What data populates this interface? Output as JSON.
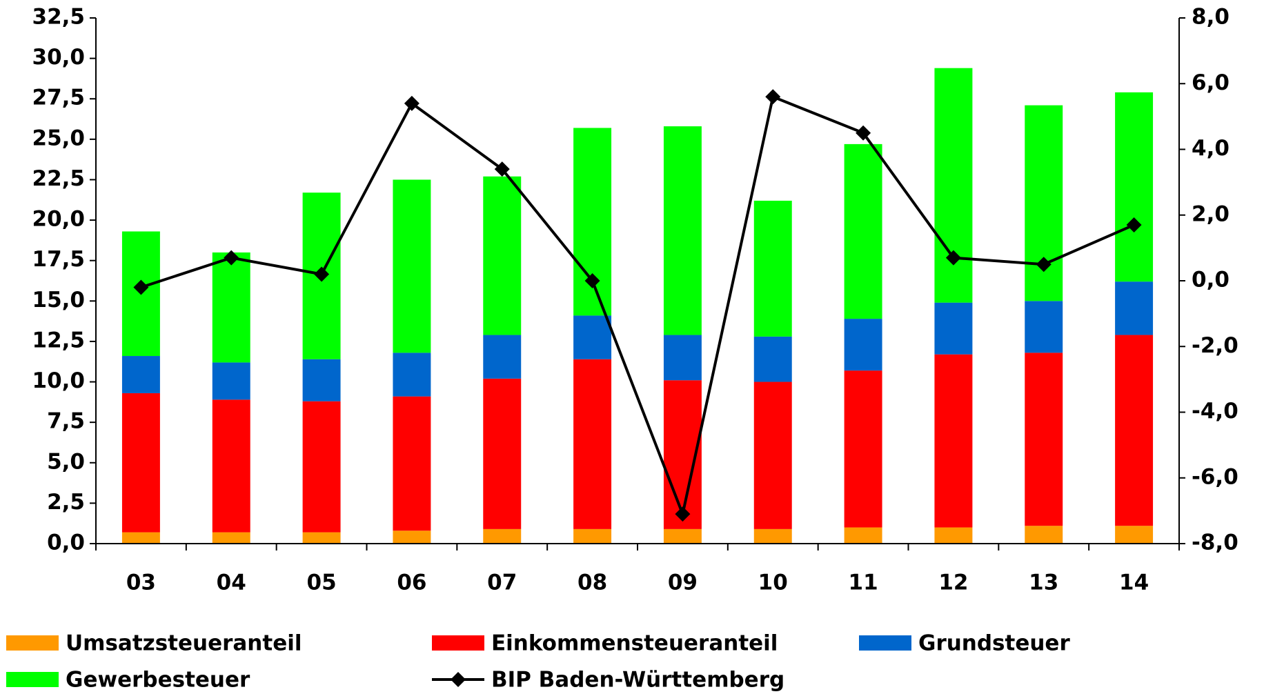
{
  "chart_data": {
    "type": "bar",
    "stacked": true,
    "categories": [
      "03",
      "04",
      "05",
      "06",
      "07",
      "08",
      "09",
      "10",
      "11",
      "12",
      "13",
      "14"
    ],
    "series": [
      {
        "name": "Umsatzsteueranteil",
        "color": "#ff9900",
        "values": [
          0.7,
          0.7,
          0.7,
          0.8,
          0.9,
          0.9,
          0.9,
          0.9,
          1.0,
          1.0,
          1.1,
          1.1
        ]
      },
      {
        "name": "Einkommensteueranteil",
        "color": "#ff0000",
        "values": [
          8.6,
          8.2,
          8.1,
          8.3,
          9.3,
          10.5,
          9.2,
          9.1,
          9.7,
          10.7,
          10.7,
          11.8
        ]
      },
      {
        "name": "Grundsteuer",
        "color": "#0066cc",
        "values": [
          2.3,
          2.3,
          2.6,
          2.7,
          2.7,
          2.7,
          2.8,
          2.8,
          3.2,
          3.2,
          3.2,
          3.3
        ]
      },
      {
        "name": "Gewerbesteuer",
        "color": "#00ff00",
        "values": [
          7.7,
          6.8,
          10.3,
          10.7,
          9.8,
          11.6,
          12.9,
          8.4,
          10.8,
          14.5,
          12.1,
          11.7
        ]
      },
      {
        "name": "BIP Baden-Württemberg",
        "color": "#000000",
        "type": "line",
        "axis": "y2",
        "marker": "diamond",
        "values": [
          -0.2,
          0.7,
          0.2,
          5.4,
          3.4,
          0.0,
          -7.1,
          5.6,
          4.5,
          0.7,
          0.5,
          1.7
        ]
      }
    ],
    "ylim": [
      0,
      32.5
    ],
    "yticks": [
      {
        "value": 0,
        "label": "0,0"
      },
      {
        "value": 2.5,
        "label": "2,5"
      },
      {
        "value": 5,
        "label": "5,0"
      },
      {
        "value": 7.5,
        "label": "7,5"
      },
      {
        "value": 10,
        "label": "10,0"
      },
      {
        "value": 12.5,
        "label": "12,5"
      },
      {
        "value": 15,
        "label": "15,0"
      },
      {
        "value": 17.5,
        "label": "17,5"
      },
      {
        "value": 20,
        "label": "20,0"
      },
      {
        "value": 22.5,
        "label": "22,5"
      },
      {
        "value": 25,
        "label": "25,0"
      },
      {
        "value": 27.5,
        "label": "27,5"
      },
      {
        "value": 30,
        "label": "30,0"
      },
      {
        "value": 32.5,
        "label": "32,5"
      }
    ],
    "y2lim": [
      -8,
      8
    ],
    "y2ticks": [
      {
        "value": -8,
        "label": "-8,0"
      },
      {
        "value": -6,
        "label": "-6,0"
      },
      {
        "value": -4,
        "label": "-4,0"
      },
      {
        "value": -2,
        "label": "-2,0"
      },
      {
        "value": 0,
        "label": "0,0"
      },
      {
        "value": 2,
        "label": "2,0"
      },
      {
        "value": 4,
        "label": "4,0"
      },
      {
        "value": 6,
        "label": "6,0"
      },
      {
        "value": 8,
        "label": "8,0"
      }
    ],
    "grid": false,
    "legend": "bottom"
  }
}
